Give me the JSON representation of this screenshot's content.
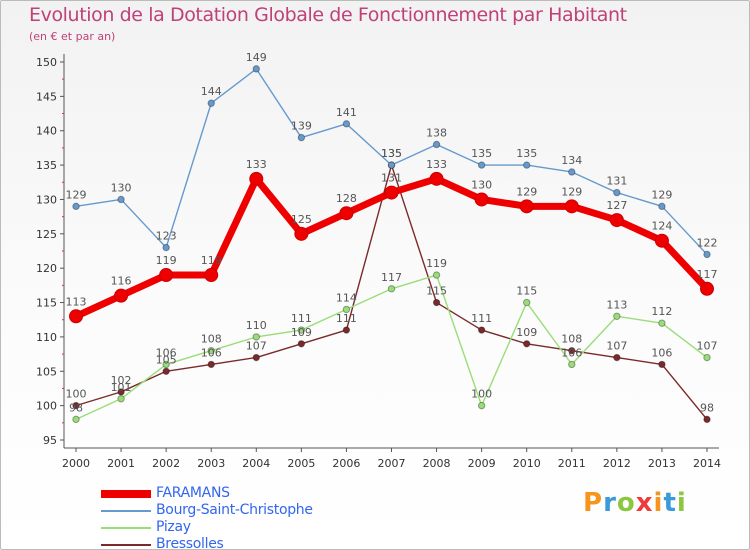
{
  "title": "Evolution de la Dotation Globale de Fonctionnement par Habitant",
  "subtitle": "(en € et par an)",
  "brand": {
    "letters": [
      "P",
      "r",
      "o",
      "x",
      "i",
      "t",
      "i"
    ],
    "colors": [
      "#f7941d",
      "#3b9ad9",
      "#8dc63f",
      "#ee3b3b",
      "#f7941d",
      "#3b9ad9",
      "#8dc63f"
    ]
  },
  "chart_data": {
    "type": "line",
    "title": "Evolution de la Dotation Globale de Fonctionnement par Habitant",
    "subtitle": "(en € et par an)",
    "x": [
      2000,
      2001,
      2002,
      2003,
      2004,
      2005,
      2006,
      2007,
      2008,
      2009,
      2010,
      2011,
      2012,
      2013,
      2014
    ],
    "x_tick_labels": [
      "2000",
      "2001",
      "2002",
      "2003",
      "2004",
      "2005",
      "2006",
      "2007",
      "2008",
      "2009",
      "2010",
      "2011",
      "2012",
      "2013",
      "2014"
    ],
    "ylim": [
      95,
      150
    ],
    "y_ticks": [
      95,
      100,
      105,
      110,
      115,
      120,
      125,
      130,
      135,
      140,
      145,
      150
    ],
    "grid": false,
    "legend_position": "bottom-left",
    "series": [
      {
        "name": "FARAMANS",
        "color": "#ee0000",
        "values": [
          113,
          116,
          119,
          119,
          133,
          125,
          128,
          131,
          133,
          130,
          129,
          129,
          127,
          124,
          117
        ],
        "data_labels": [
          "113",
          "116",
          "119",
          "119",
          "133",
          "125",
          "128",
          "131",
          "133",
          "130",
          "129",
          "129",
          "127",
          "124",
          "117"
        ]
      },
      {
        "name": "Bourg-Saint-Christophe",
        "color": "#6699cc",
        "values": [
          129,
          130,
          123,
          144,
          149,
          139,
          141,
          135,
          138,
          135,
          135,
          134,
          131,
          129,
          122
        ],
        "data_labels": [
          "129",
          "130",
          "123",
          "144",
          "149",
          "139",
          "141",
          "135",
          "138",
          "135",
          "135",
          "134",
          "131",
          "129",
          "122"
        ]
      },
      {
        "name": "Pizay",
        "color": "#99dd77",
        "values": [
          98,
          101,
          106,
          108,
          110,
          111,
          114,
          117,
          119,
          100,
          115,
          106,
          113,
          112,
          107
        ],
        "data_labels": [
          "98",
          "101",
          "106",
          "108",
          "110",
          "111",
          "114",
          "117",
          "119",
          "100",
          "115",
          "106",
          "113",
          "112",
          "107"
        ]
      },
      {
        "name": "Bressolles",
        "color": "#7a2a2a",
        "values": [
          100,
          102,
          105,
          106,
          107,
          109,
          111,
          135,
          115,
          111,
          109,
          108,
          107,
          106,
          98
        ],
        "data_labels": [
          "100",
          "102",
          "105",
          "106",
          "107",
          "109",
          "111",
          "135",
          "115",
          "111",
          "109",
          "108",
          "107",
          "106",
          "98"
        ]
      }
    ]
  }
}
